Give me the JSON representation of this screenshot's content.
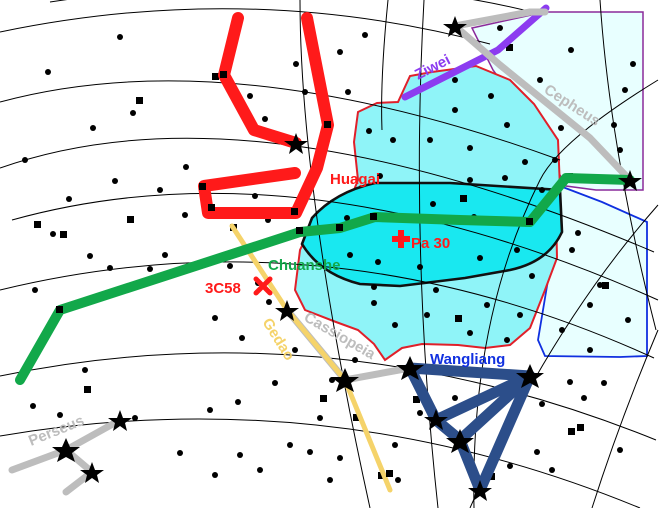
{
  "labels": {
    "ziwei": "Ziwei",
    "cepheus": "Cepheus",
    "huagai": "Huagai",
    "pa30": "Pa 30",
    "chuanshe": "Chuanshe",
    "c3c58": "3C58",
    "gedao": "Gedao",
    "cassiopeia": "Cassiopeia",
    "wangliang": "Wangliang",
    "perseus": "Perseus"
  },
  "colors": {
    "huagai": "#ff1a1a",
    "chuanshe": "#12a84a",
    "gedao": "#f5d36a",
    "wangliang": "#2c4e8a",
    "ziwei": "#8c3cf0",
    "constellation": "#bdbdbd",
    "region_outer": "#e8ffff",
    "region_mid": "#8ff4f8",
    "region_inner": "#19e8f0",
    "pa30_marker": "#ff1a1a",
    "c3c58_marker": "#ff1a1a",
    "cepheus_border": "#8a2a9a",
    "cass_border": "#e0202a",
    "wangliang_border": "#1030e0",
    "grid": "#000000"
  },
  "markers": {
    "pa30": "cross-marker",
    "c3c58": "x-marker"
  }
}
